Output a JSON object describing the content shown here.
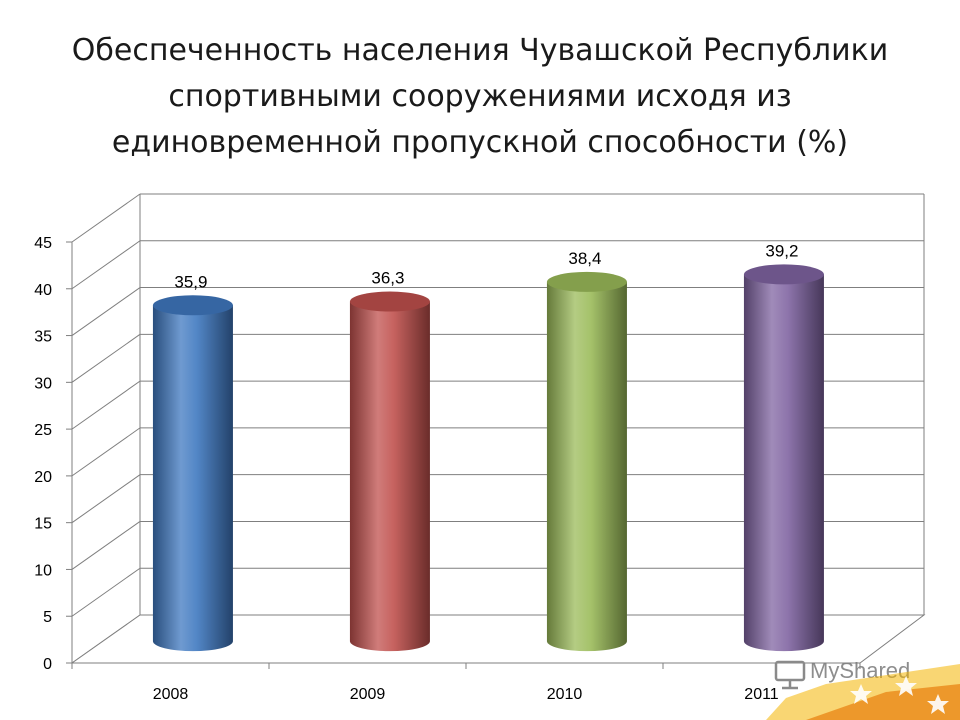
{
  "title_lines": [
    "Обеспеченность населения Чувашской Республики",
    "спортивными сооружениями исходя из",
    "единовременной пропускной способности (%)"
  ],
  "chart_data": {
    "type": "bar",
    "style": "3d-cylinder",
    "title": "Обеспеченность населения Чувашской Республики спортивными сооружениями исходя из единовременной пропускной способности (%)",
    "categories": [
      "2008",
      "2009",
      "2010",
      "2011"
    ],
    "values": [
      35.9,
      36.3,
      38.4,
      39.2
    ],
    "value_labels": [
      "35,9",
      "36,3",
      "38,4",
      "39,2"
    ],
    "colors": [
      "#3f78c0",
      "#c0504d",
      "#9bbb59",
      "#8064a2"
    ],
    "ylim": [
      0,
      45
    ],
    "yticks": [
      0,
      5,
      10,
      15,
      20,
      25,
      30,
      35,
      40,
      45
    ],
    "grid": true,
    "legend": "none"
  },
  "watermark": {
    "text": "MyShared",
    "icon": "presentation-board-icon"
  }
}
